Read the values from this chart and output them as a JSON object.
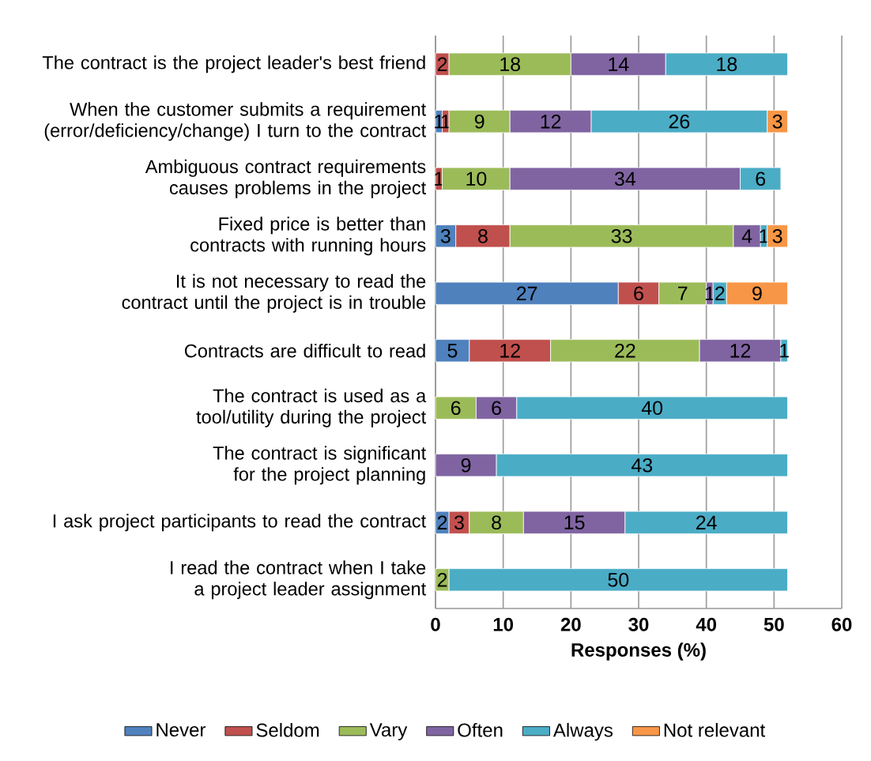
{
  "chart_data": {
    "type": "bar",
    "orientation": "horizontal",
    "stacked": true,
    "categories": [
      "The contract is the project leader's best friend",
      "When the customer submits a requirement (error/deficiency/change) I turn to the contract",
      "Ambiguous contract requirements causes problems in the project",
      "Fixed price is better than contracts with running hours",
      "It is not necessary to read the contract until the project is in trouble",
      "Contracts are difficult to read",
      "The contract is used as a tool/utility during the project",
      "The contract is significant for the project planning",
      "I ask project participants to read the contract",
      "I read the contract when I take a project leader assignment"
    ],
    "series": [
      {
        "name": "Never",
        "color": "#4f81bd",
        "values": [
          null,
          1,
          null,
          3,
          27,
          5,
          null,
          null,
          2,
          null
        ]
      },
      {
        "name": "Seldom",
        "color": "#c0504d",
        "values": [
          2,
          1,
          1,
          8,
          6,
          12,
          null,
          null,
          3,
          null
        ]
      },
      {
        "name": "Vary",
        "color": "#9bbb59",
        "values": [
          18,
          9,
          10,
          33,
          7,
          22,
          6,
          null,
          8,
          2
        ]
      },
      {
        "name": "Often",
        "color": "#8064a2",
        "values": [
          14,
          12,
          34,
          4,
          1,
          12,
          6,
          9,
          15,
          null
        ]
      },
      {
        "name": "Always",
        "color": "#4bacc6",
        "values": [
          18,
          26,
          6,
          1,
          2,
          1,
          40,
          43,
          24,
          50
        ]
      },
      {
        "name": "Not relevant",
        "color": "#f79646",
        "values": [
          null,
          3,
          null,
          3,
          9,
          null,
          null,
          null,
          null,
          null
        ]
      }
    ],
    "xlim": [
      0,
      60
    ],
    "xticks": [
      0,
      10,
      20,
      30,
      40,
      50,
      60
    ],
    "xlabel": "Responses (%)",
    "data_labels": true,
    "legend": "bottom",
    "grid": "x"
  }
}
